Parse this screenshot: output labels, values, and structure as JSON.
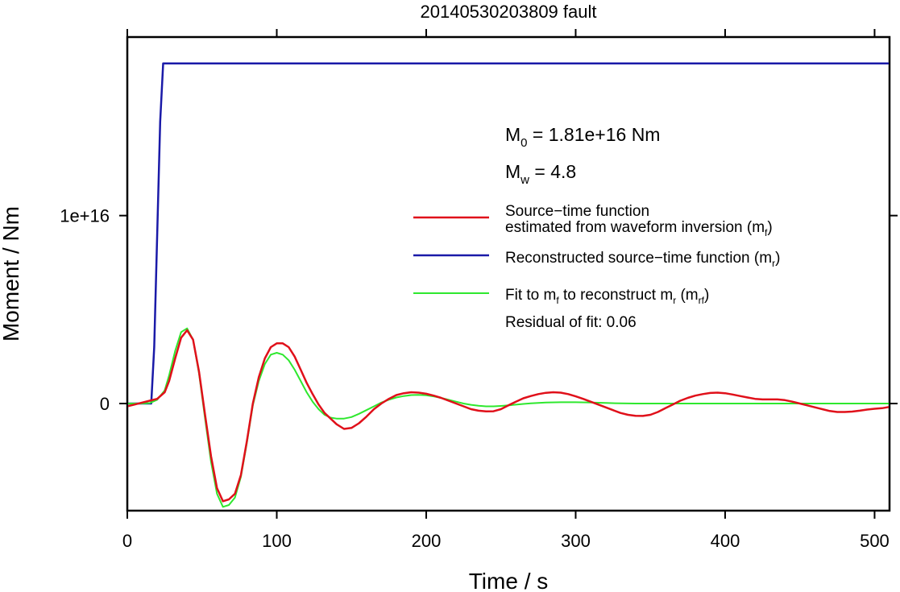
{
  "chart_data": {
    "type": "line",
    "title": "20140530203809 fault",
    "xlabel": "Time / s",
    "ylabel": "Moment / Nm",
    "xlim": [
      0,
      510
    ],
    "ylim": [
      -5700000000000000.0,
      1.95e+16
    ],
    "xticks": [
      0,
      100,
      200,
      300,
      400,
      500
    ],
    "xtick_labels": [
      "0",
      "100",
      "200",
      "300",
      "400",
      "500"
    ],
    "yticks": [
      0,
      1e+16
    ],
    "ytick_labels": [
      "0",
      "1e+16"
    ],
    "grid": false,
    "legend_position": "right",
    "annotations": {
      "m0": {
        "main": "M",
        "sub": "0",
        "rest": " = 1.81e+16 Nm"
      },
      "mw": {
        "main": "M",
        "sub": "w",
        "rest": " = 4.8"
      },
      "residual": "Residual of fit: 0.06"
    },
    "series": [
      {
        "name": "Source−time function estimated from waveform inversion (mf)",
        "legend_line1": "Source−time function",
        "legend_line2_pre": "estimated from waveform inversion (m",
        "legend_line2_sub": "f",
        "legend_line2_post": ")",
        "color": "#e0101a",
        "width": 2.5,
        "x": [
          0,
          5,
          10,
          15,
          20,
          25,
          28,
          32,
          36,
          40,
          44,
          48,
          52,
          56,
          60,
          64,
          68,
          72,
          76,
          80,
          84,
          88,
          92,
          96,
          100,
          104,
          108,
          112,
          116,
          120,
          124,
          128,
          132,
          136,
          140,
          145,
          150,
          155,
          160,
          165,
          170,
          175,
          180,
          185,
          190,
          195,
          200,
          205,
          210,
          215,
          220,
          225,
          230,
          235,
          240,
          245,
          250,
          255,
          260,
          265,
          270,
          275,
          280,
          285,
          290,
          295,
          300,
          305,
          310,
          315,
          320,
          325,
          330,
          335,
          340,
          345,
          350,
          355,
          360,
          365,
          370,
          375,
          380,
          385,
          390,
          395,
          400,
          405,
          410,
          415,
          420,
          425,
          430,
          435,
          440,
          445,
          450,
          455,
          460,
          465,
          470,
          475,
          480,
          485,
          490,
          495,
          500,
          505,
          510
        ],
        "y": [
          -150000000000000.0,
          -50000000000000.0,
          50000000000000.0,
          150000000000000.0,
          250000000000000.0,
          600000000000000.0,
          1200000000000000.0,
          2400000000000000.0,
          3500000000000000.0,
          3900000000000000.0,
          3400000000000000.0,
          1700000000000000.0,
          -600000000000000.0,
          -2800000000000000.0,
          -4500000000000000.0,
          -5200000000000000.0,
          -5100000000000000.0,
          -4800000000000000.0,
          -3800000000000000.0,
          -2000000000000000.0,
          0,
          1400000000000000.0,
          2400000000000000.0,
          3000000000000000.0,
          3200000000000000.0,
          3200000000000000.0,
          3000000000000000.0,
          2500000000000000.0,
          1800000000000000.0,
          1100000000000000.0,
          500000000000000.0,
          -50000000000000.0,
          -500000000000000.0,
          -800000000000000.0,
          -1100000000000000.0,
          -1350000000000000.0,
          -1300000000000000.0,
          -1050000000000000.0,
          -700000000000000.0,
          -300000000000000.0,
          0,
          250000000000000.0,
          450000000000000.0,
          550000000000000.0,
          600000000000000.0,
          580000000000000.0,
          520000000000000.0,
          420000000000000.0,
          300000000000000.0,
          150000000000000.0,
          0,
          -150000000000000.0,
          -300000000000000.0,
          -380000000000000.0,
          -420000000000000.0,
          -410000000000000.0,
          -300000000000000.0,
          -100000000000000.0,
          100000000000000.0,
          280000000000000.0,
          400000000000000.0,
          500000000000000.0,
          570000000000000.0,
          600000000000000.0,
          580000000000000.0,
          500000000000000.0,
          380000000000000.0,
          250000000000000.0,
          100000000000000.0,
          -50000000000000.0,
          -200000000000000.0,
          -350000000000000.0,
          -500000000000000.0,
          -600000000000000.0,
          -650000000000000.0,
          -660000000000000.0,
          -600000000000000.0,
          -450000000000000.0,
          -250000000000000.0,
          -50000000000000.0,
          150000000000000.0,
          300000000000000.0,
          420000000000000.0,
          500000000000000.0,
          560000000000000.0,
          580000000000000.0,
          550000000000000.0,
          480000000000000.0,
          400000000000000.0,
          320000000000000.0,
          250000000000000.0,
          220000000000000.0,
          220000000000000.0,
          220000000000000.0,
          180000000000000.0,
          100000000000000.0,
          0,
          -100000000000000.0,
          -200000000000000.0,
          -300000000000000.0,
          -400000000000000.0,
          -450000000000000.0,
          -450000000000000.0,
          -430000000000000.0,
          -380000000000000.0,
          -320000000000000.0,
          -280000000000000.0,
          -250000000000000.0,
          -180000000000000.0
        ]
      },
      {
        "name": "Reconstructed source−time function (mr)",
        "legend_pre": "Reconstructed source−time function (m",
        "legend_sub": "r",
        "legend_post": ")",
        "color": "#1a1aa8",
        "width": 2.5,
        "x": [
          0,
          16,
          18,
          20,
          22,
          24,
          26,
          510
        ],
        "y": [
          0,
          0,
          3000000000000000.0,
          9000000000000000.0,
          1.5e+16,
          1.81e+16,
          1.81e+16,
          1.81e+16
        ]
      },
      {
        "name": "Fit to mf to reconstruct mr (mrf)",
        "legend_pre": "Fit to m",
        "legend_sub1": "f",
        "legend_mid": " to reconstruct m",
        "legend_sub2": "r",
        "legend_mid2": " (m",
        "legend_sub3": "rf",
        "legend_post": ")",
        "color": "#2ee82e",
        "width": 2.0,
        "x": [
          0,
          10,
          15,
          20,
          25,
          28,
          32,
          36,
          40,
          44,
          48,
          52,
          56,
          60,
          64,
          68,
          72,
          76,
          80,
          84,
          88,
          92,
          96,
          100,
          104,
          108,
          112,
          116,
          120,
          124,
          128,
          132,
          136,
          140,
          145,
          150,
          155,
          160,
          165,
          170,
          175,
          180,
          185,
          190,
          195,
          200,
          205,
          210,
          215,
          220,
          225,
          230,
          235,
          240,
          245,
          250,
          255,
          260,
          265,
          270,
          280,
          290,
          300,
          310,
          320,
          330,
          340,
          350,
          360,
          370,
          380,
          390,
          400,
          420,
          440,
          460,
          480,
          500,
          510
        ],
        "y": [
          0,
          0,
          20000000000000.0,
          200000000000000.0,
          700000000000000.0,
          1500000000000000.0,
          2800000000000000.0,
          3800000000000000.0,
          4000000000000000.0,
          3400000000000000.0,
          1600000000000000.0,
          -800000000000000.0,
          -3100000000000000.0,
          -4800000000000000.0,
          -5500000000000000.0,
          -5400000000000000.0,
          -5000000000000000.0,
          -3900000000000000.0,
          -2100000000000000.0,
          -100000000000000.0,
          1200000000000000.0,
          2100000000000000.0,
          2600000000000000.0,
          2700000000000000.0,
          2600000000000000.0,
          2300000000000000.0,
          1800000000000000.0,
          1200000000000000.0,
          600000000000000.0,
          100000000000000.0,
          -300000000000000.0,
          -600000000000000.0,
          -750000000000000.0,
          -800000000000000.0,
          -800000000000000.0,
          -720000000000000.0,
          -550000000000000.0,
          -350000000000000.0,
          -150000000000000.0,
          50000000000000.0,
          200000000000000.0,
          320000000000000.0,
          400000000000000.0,
          450000000000000.0,
          460000000000000.0,
          440000000000000.0,
          380000000000000.0,
          300000000000000.0,
          200000000000000.0,
          100000000000000.0,
          0,
          -70000000000000.0,
          -120000000000000.0,
          -150000000000000.0,
          -150000000000000.0,
          -130000000000000.0,
          -100000000000000.0,
          -60000000000000.0,
          -20000000000000.0,
          10000000000000.0,
          50000000000000.0,
          70000000000000.0,
          70000000000000.0,
          50000000000000.0,
          30000000000000.0,
          10000000000000.0,
          0,
          0,
          0,
          0,
          0,
          0,
          0,
          0,
          0,
          0,
          0,
          0,
          0
        ]
      }
    ]
  }
}
